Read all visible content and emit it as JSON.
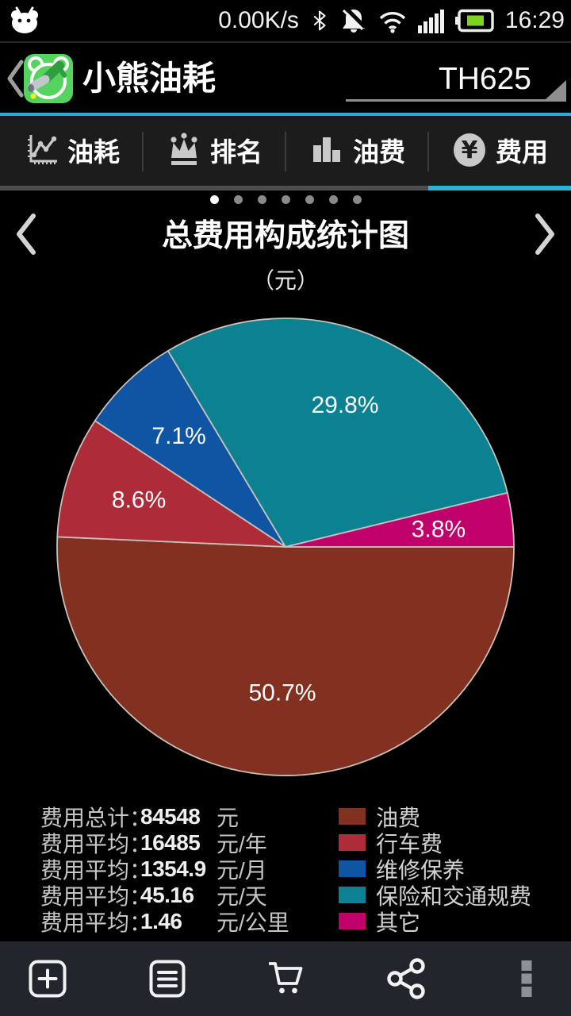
{
  "status_bar": {
    "network_speed": "0.00K/s",
    "time": "16:29",
    "battery_color": "#7CD41F",
    "icons": [
      "bear-notification-icon",
      "bluetooth-icon",
      "notifications-off-icon",
      "wifi-icon",
      "signal-icon",
      "battery-icon"
    ]
  },
  "header": {
    "app_title": "小熊油耗",
    "vehicle_selector_value": "TH625",
    "accent_color": "#2AA9DB"
  },
  "tabs": [
    {
      "label": "油耗",
      "icon": "line-chart-icon",
      "active": false
    },
    {
      "label": "排名",
      "icon": "crown-icon",
      "active": false
    },
    {
      "label": "油费",
      "icon": "bar-chart-icon",
      "active": false
    },
    {
      "label": "费用",
      "icon": "yen-circle-icon",
      "active": true
    }
  ],
  "carousel": {
    "page_count": 7,
    "active_index": 0
  },
  "chart_data": {
    "type": "pie",
    "title": "总费用构成统计图",
    "unit_label": "（元）",
    "start_angle_deg": 0,
    "direction": "clockwise",
    "label_color": "#FFFFFF",
    "slice_border_color": "#C9C1BA",
    "slices": [
      {
        "label": "油费",
        "percent": 50.7,
        "display": "50.7%",
        "color": "#82301F"
      },
      {
        "label": "行车费",
        "percent": 8.6,
        "display": "8.6%",
        "color": "#AE2B3A"
      },
      {
        "label": "维修保养",
        "percent": 7.1,
        "display": "7.1%",
        "color": "#0F55A4"
      },
      {
        "label": "保险和交通规费",
        "percent": 29.8,
        "display": "29.8%",
        "color": "#0C8191"
      },
      {
        "label": "其它",
        "percent": 3.8,
        "display": "3.8%",
        "color": "#C0016B"
      }
    ]
  },
  "stats": {
    "rows": [
      {
        "label": "费用总计：",
        "value": "84548",
        "unit": "元"
      },
      {
        "label": "费用平均：",
        "value": "16485",
        "unit": "元/年"
      },
      {
        "label": "费用平均：",
        "value": "1354.9",
        "unit": "元/月"
      },
      {
        "label": "费用平均：",
        "value": "45.16",
        "unit": "元/天"
      },
      {
        "label": "费用平均：",
        "value": "1.46",
        "unit": "元/公里"
      }
    ]
  },
  "toolbar": {
    "items": [
      {
        "icon": "add-record-icon"
      },
      {
        "icon": "records-list-icon"
      },
      {
        "icon": "shopping-cart-icon"
      },
      {
        "icon": "share-icon"
      },
      {
        "icon": "overflow-menu-icon"
      }
    ]
  }
}
